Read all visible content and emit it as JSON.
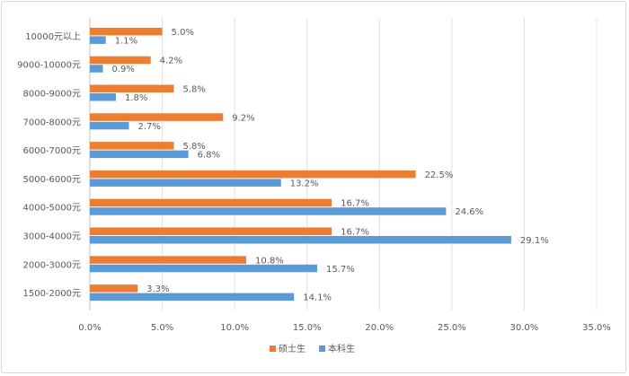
{
  "chart_data": {
    "type": "bar",
    "orientation": "horizontal",
    "categories": [
      "10000元以上",
      "9000-10000元",
      "8000-9000元",
      "7000-8000元",
      "6000-7000元",
      "5000-6000元",
      "4000-5000元",
      "3000-4000元",
      "2000-3000元",
      "1500-2000元"
    ],
    "series": [
      {
        "name": "硕士生",
        "color": "#ED7D31",
        "values": [
          5.0,
          4.2,
          5.8,
          9.2,
          5.8,
          22.5,
          16.7,
          16.7,
          10.8,
          3.3
        ]
      },
      {
        "name": "本科生",
        "color": "#5B9BD5",
        "values": [
          1.1,
          0.9,
          1.8,
          2.7,
          6.8,
          13.2,
          24.6,
          29.1,
          15.7,
          14.1
        ]
      }
    ],
    "xlim": [
      0,
      35
    ],
    "xticks": [
      "0.0%",
      "5.0%",
      "10.0%",
      "15.0%",
      "20.0%",
      "25.0%",
      "30.0%",
      "35.0%"
    ],
    "grid": true,
    "legend": "bottom",
    "value_format": "percent-1dp"
  }
}
